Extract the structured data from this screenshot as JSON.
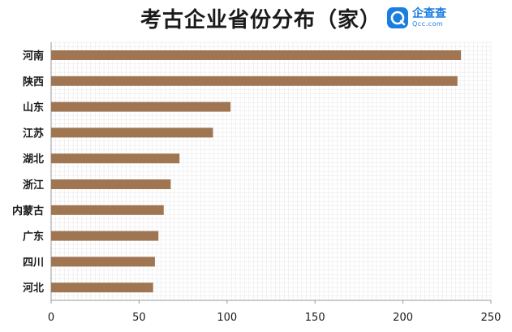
{
  "header": {
    "title": "考古企业省份分布（家）",
    "logo_cn": "企查查",
    "logo_en": "Qcc.com"
  },
  "colors": {
    "bar": "#a07552",
    "grid": "#e6e6e6",
    "axis": "#999999",
    "logo": "#1a7de0"
  },
  "icons": {
    "logo": "qcc-logo-icon"
  },
  "chart_data": {
    "type": "bar",
    "orientation": "horizontal",
    "title": "考古企业省份分布（家）",
    "categories": [
      "河南",
      "陕西",
      "山东",
      "江苏",
      "湖北",
      "浙江",
      "内蒙古",
      "广东",
      "四川",
      "河北"
    ],
    "values": [
      233,
      231,
      102,
      92,
      73,
      68,
      64,
      61,
      59,
      58
    ],
    "xlim": [
      0,
      250
    ],
    "xticks": [
      "0",
      "50",
      "100",
      "150",
      "200",
      "250"
    ],
    "xlabel": "",
    "ylabel": "",
    "grid": true
  }
}
